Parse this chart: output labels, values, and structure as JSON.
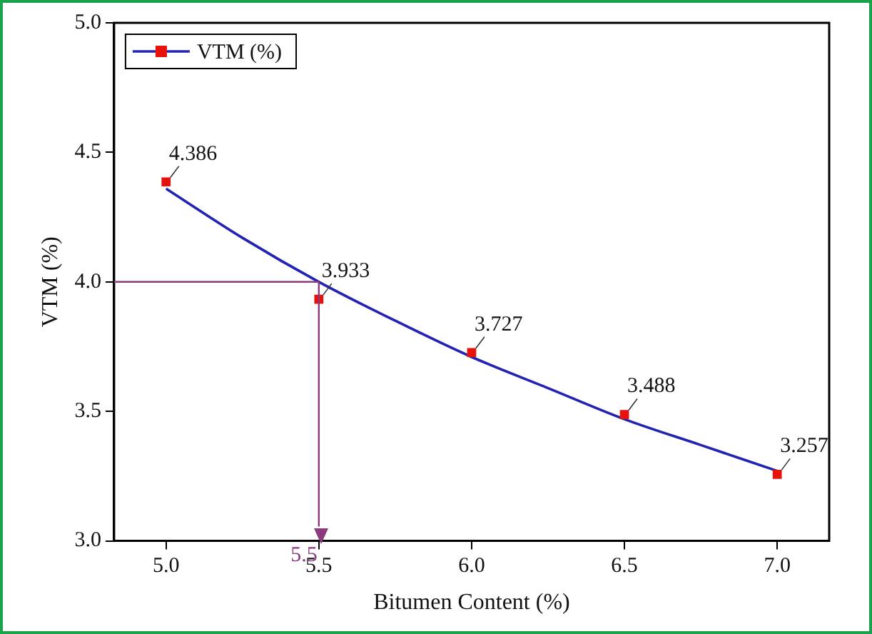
{
  "chart_data": {
    "type": "scatter",
    "xlabel": "Bitumen Content (%)",
    "ylabel": "VTM (%)",
    "series": [
      {
        "name": "VTM (%)",
        "color": "#e8120c",
        "marker": "square",
        "x": [
          5.0,
          5.5,
          6.0,
          6.5,
          7.0
        ],
        "values": [
          4.386,
          3.933,
          3.727,
          3.488,
          3.257
        ],
        "value_labels": [
          "4.386",
          "3.933",
          "3.727",
          "3.488",
          "3.257"
        ]
      },
      {
        "type": "line",
        "color": "#2222b4",
        "marker": "none",
        "x": [
          5.0,
          5.25,
          5.5,
          5.75,
          6.0,
          6.25,
          6.5,
          6.75,
          7.0
        ],
        "values": [
          4.36,
          4.17,
          4.0,
          3.85,
          3.71,
          3.59,
          3.47,
          3.37,
          3.27
        ]
      }
    ],
    "xlim": [
      4.83,
      7.17
    ],
    "xticks": [
      {
        "value": 5,
        "label": "5.0"
      },
      {
        "value": 5.5,
        "label": "5.5"
      },
      {
        "value": 6,
        "label": "6.0"
      },
      {
        "value": 6.5,
        "label": "6.5"
      },
      {
        "value": 7,
        "label": "7.0"
      }
    ],
    "ylim": [
      3.0,
      5.0
    ],
    "yticks": [
      {
        "value": 3,
        "label": "3.0"
      },
      {
        "value": 3.5,
        "label": "3.5"
      },
      {
        "value": 4,
        "label": "4.0"
      },
      {
        "value": 4.5,
        "label": "4.5"
      },
      {
        "value": 5,
        "label": "5.0"
      }
    ],
    "ref_lines": [
      {
        "axis": "y",
        "value": 4.0,
        "color": "#8b3a7e"
      },
      {
        "axis": "x",
        "value": 5.5,
        "label": "5.5",
        "color": "#8b3a7e"
      }
    ],
    "grid": false,
    "legend": "top left"
  }
}
